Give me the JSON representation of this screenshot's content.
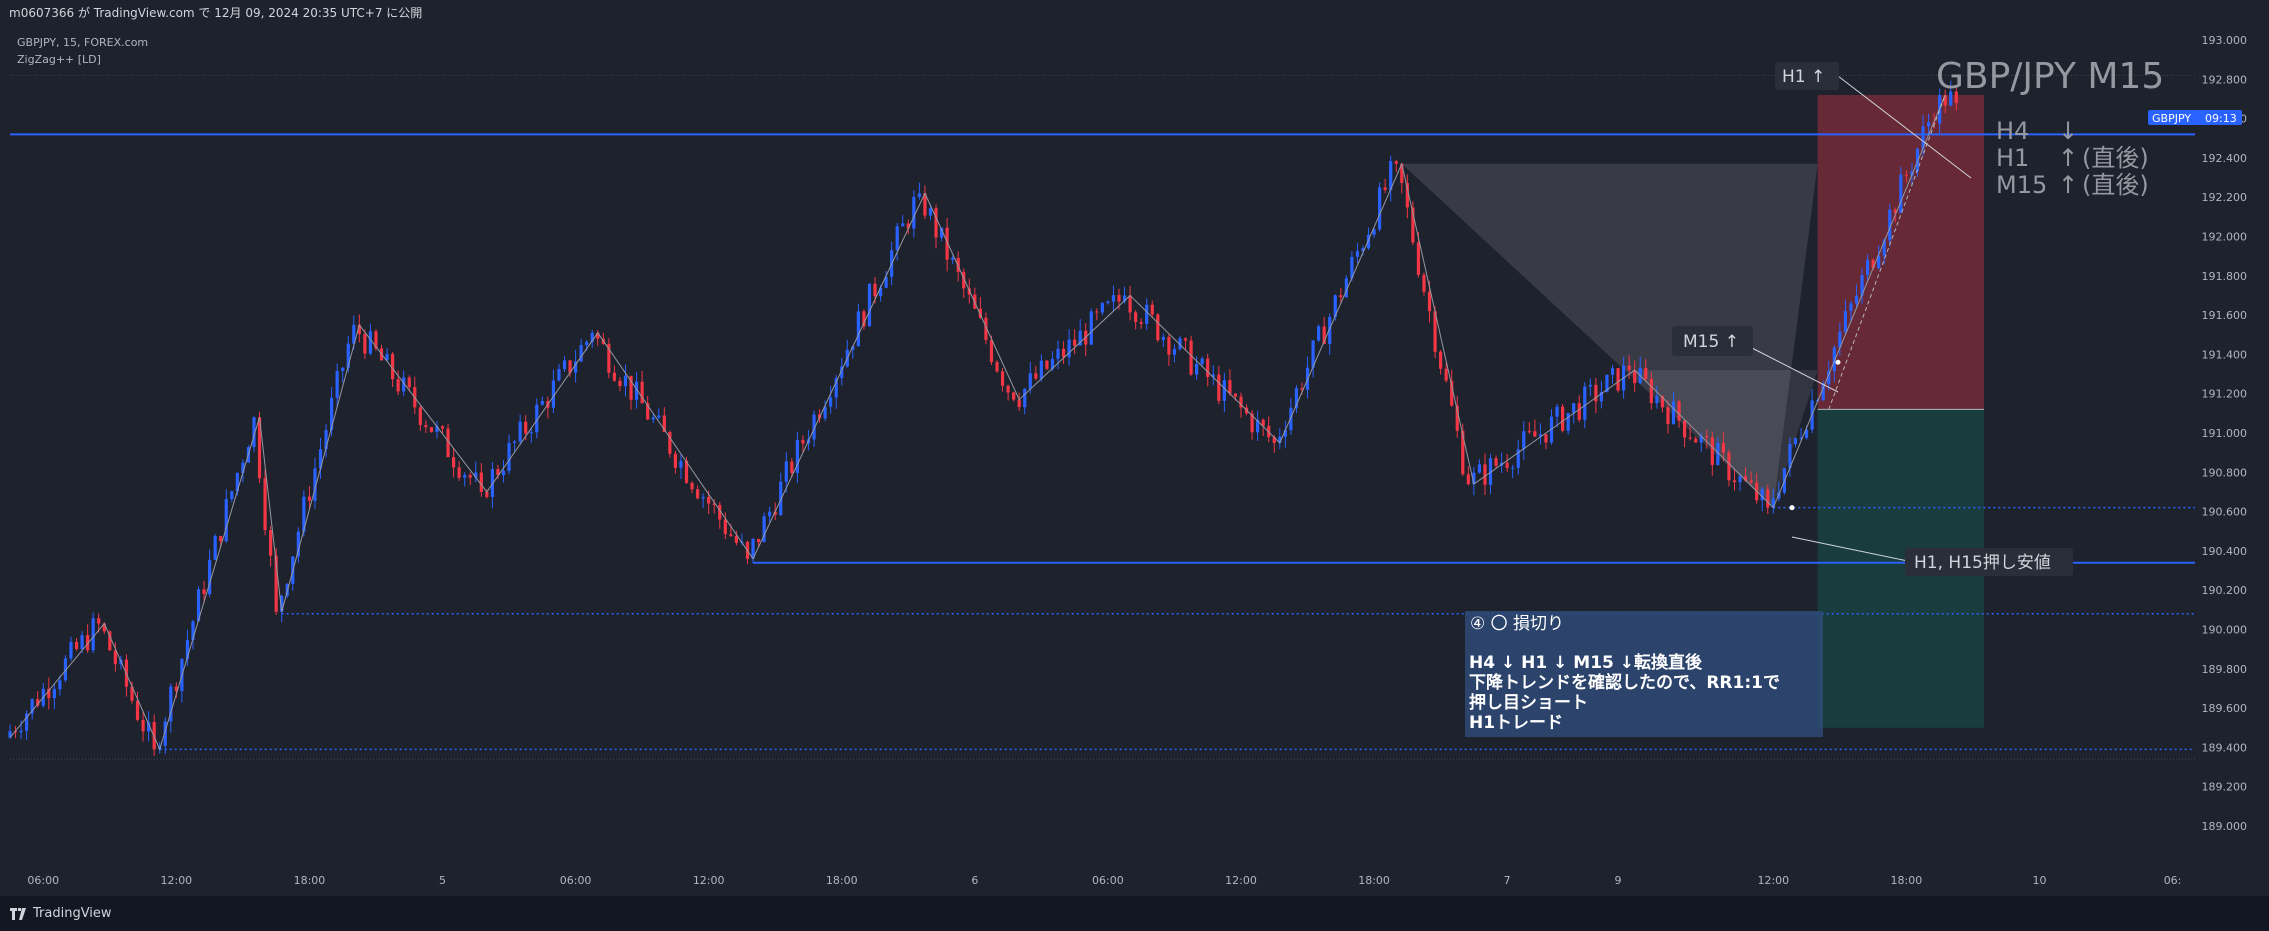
{
  "header": {
    "publish_line": "m0607366 が TradingView.com で 12月 09, 2024 20:35 UTC+7 に公開"
  },
  "legend": {
    "symbol_line": "GBPJPY, 15, FOREX.com",
    "indicator_line": "ZigZag++ [LD]"
  },
  "watermark": {
    "title": "GBP/JPY M15"
  },
  "trend_panel": {
    "rows": [
      {
        "tf": "H4",
        "arrow": "↓",
        "note": ""
      },
      {
        "tf": "H1",
        "arrow": "↑",
        "note": "(直後)"
      },
      {
        "tf": "M15",
        "arrow": "↑",
        "note": "(直後)"
      }
    ]
  },
  "price_badge": {
    "symbol": "GBPJPY",
    "countdown": "09:13",
    "color": "#2962ff"
  },
  "callouts": {
    "h1_up": "H1 ↑",
    "m15_up": "M15 ↑",
    "support": "H1, H15押し安値"
  },
  "note_box": {
    "title": "④ 〇 損切り",
    "lines": [
      "H4 ↓ H1 ↓ M15 ↓転換直後",
      "下降トレンドを確認したので、RR1:1で",
      "押し目ショート",
      "H1トレード"
    ]
  },
  "footer": {
    "brand": "TradingView"
  },
  "colors": {
    "background": "#1e222d",
    "up": "#2962ff",
    "down": "#f23645",
    "level_line": "#2962ff",
    "stop_zone": "#f23645",
    "target_zone": "#089981"
  },
  "chart_data": {
    "type": "candlestick",
    "symbol": "GBPJPY",
    "timeframe": "15",
    "y_axis": {
      "ylim": [
        189.0,
        193.1
      ],
      "ticks": [
        189.0,
        189.2,
        189.4,
        189.6,
        189.8,
        190.0,
        190.2,
        190.4,
        190.6,
        190.8,
        191.0,
        191.2,
        191.4,
        191.6,
        191.8,
        192.0,
        192.2,
        192.4,
        192.6,
        192.8,
        193.0
      ],
      "tick_labels": [
        "189.000",
        "189.200",
        "189.400",
        "189.600",
        "189.800",
        "190.000",
        "190.200",
        "190.400",
        "190.600",
        "190.800",
        "191.000",
        "191.200",
        "191.400",
        "191.600",
        "191.800",
        "192.000",
        "192.200",
        "192.400",
        "192.600",
        "192.800",
        "193.000"
      ],
      "highlight_label": "192.600"
    },
    "x_axis": {
      "ticks": [
        {
          "i": 6,
          "label": "06:00"
        },
        {
          "i": 30,
          "label": "12:00"
        },
        {
          "i": 54,
          "label": "18:00"
        },
        {
          "i": 78,
          "label": "5"
        },
        {
          "i": 102,
          "label": "06:00"
        },
        {
          "i": 126,
          "label": "12:00"
        },
        {
          "i": 150,
          "label": "18:00"
        },
        {
          "i": 174,
          "label": "6"
        },
        {
          "i": 198,
          "label": "06:00"
        },
        {
          "i": 222,
          "label": "12:00"
        },
        {
          "i": 246,
          "label": "18:00"
        },
        {
          "i": 270,
          "label": "7"
        },
        {
          "i": 290,
          "label": "9"
        },
        {
          "i": 318,
          "label": "12:00"
        },
        {
          "i": 342,
          "label": "18:00"
        },
        {
          "i": 366,
          "label": "10"
        },
        {
          "i": 390,
          "label": "06:"
        }
      ],
      "last_index": 352
    },
    "pivots": [
      {
        "i": 0,
        "p": 189.45
      },
      {
        "i": 17,
        "p": 190.03
      },
      {
        "i": 27,
        "p": 189.39
      },
      {
        "i": 45,
        "p": 191.08
      },
      {
        "i": 49,
        "p": 190.09
      },
      {
        "i": 63,
        "p": 191.55
      },
      {
        "i": 86,
        "p": 190.7
      },
      {
        "i": 106,
        "p": 191.51
      },
      {
        "i": 134,
        "p": 190.36
      },
      {
        "i": 165,
        "p": 192.22
      },
      {
        "i": 182,
        "p": 191.17
      },
      {
        "i": 202,
        "p": 191.7
      },
      {
        "i": 229,
        "p": 190.95
      },
      {
        "i": 251,
        "p": 192.37
      },
      {
        "i": 264,
        "p": 190.74
      },
      {
        "i": 293,
        "p": 191.32
      },
      {
        "i": 318,
        "p": 190.62
      },
      {
        "i": 349,
        "p": 192.72
      },
      {
        "i": 352,
        "p": 192.68
      }
    ],
    "current_price": 192.68,
    "horizontal_levels": [
      {
        "price": 192.52,
        "style": "solid",
        "from_i": 0
      },
      {
        "price": 190.34,
        "style": "solid",
        "from_i": 134
      },
      {
        "price": 190.08,
        "style": "dotted",
        "from_i": 49
      },
      {
        "price": 189.39,
        "style": "dotted",
        "from_i": 27
      },
      {
        "price": 190.62,
        "style": "dotted",
        "from_i": 318
      }
    ],
    "short_position": {
      "from_i": 326,
      "to_i": 356,
      "stop": 192.72,
      "entry": 191.12,
      "target": 189.5
    },
    "zigzag_lines": [
      [
        {
          "i": 0,
          "p": 189.45
        },
        {
          "i": 17,
          "p": 190.03
        },
        {
          "i": 27,
          "p": 189.39
        },
        {
          "i": 45,
          "p": 191.08
        },
        {
          "i": 49,
          "p": 190.09
        },
        {
          "i": 63,
          "p": 191.55
        },
        {
          "i": 86,
          "p": 190.7
        },
        {
          "i": 106,
          "p": 191.51
        },
        {
          "i": 134,
          "p": 190.36
        },
        {
          "i": 165,
          "p": 192.22
        },
        {
          "i": 182,
          "p": 191.17
        },
        {
          "i": 202,
          "p": 191.7
        },
        {
          "i": 229,
          "p": 190.95
        },
        {
          "i": 251,
          "p": 192.37
        },
        {
          "i": 264,
          "p": 190.74
        },
        {
          "i": 293,
          "p": 191.32
        },
        {
          "i": 318,
          "p": 190.62
        },
        {
          "i": 349,
          "p": 192.72
        }
      ]
    ],
    "triangles": [
      [
        {
          "i": 251,
          "p": 192.37
        },
        {
          "i": 326,
          "p": 192.37
        },
        {
          "i": 318,
          "p": 190.62
        }
      ],
      [
        {
          "i": 293,
          "p": 191.32
        },
        {
          "i": 326,
          "p": 191.32
        },
        {
          "i": 318,
          "p": 190.62
        }
      ]
    ],
    "dashed_trend": [
      {
        "i": 328,
        "p": 191.12
      },
      {
        "i": 349,
        "p": 192.72
      }
    ]
  }
}
